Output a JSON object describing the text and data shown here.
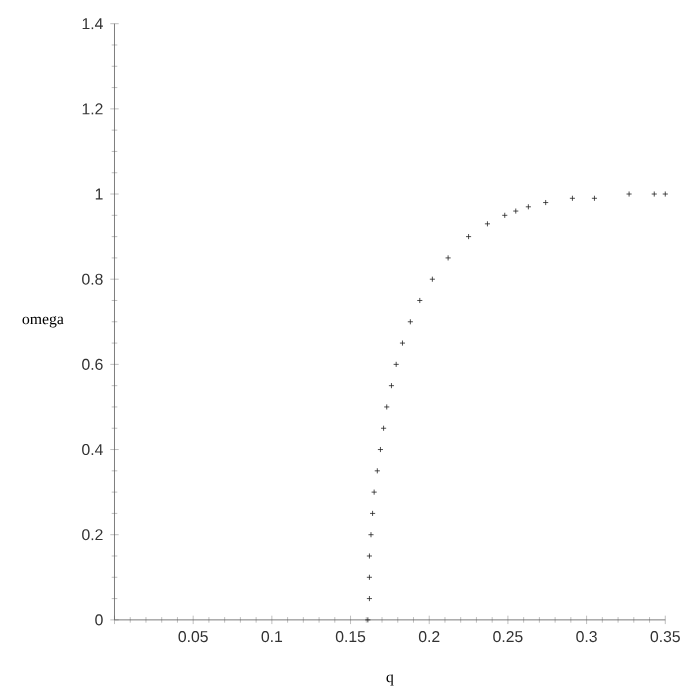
{
  "chart_data": {
    "type": "scatter",
    "xlabel": "q",
    "ylabel": "omega",
    "x": [
      0.161,
      0.162,
      0.162,
      0.162,
      0.163,
      0.164,
      0.165,
      0.167,
      0.169,
      0.171,
      0.173,
      0.176,
      0.179,
      0.183,
      0.188,
      0.194,
      0.202,
      0.212,
      0.225,
      0.237,
      0.248,
      0.255,
      0.263,
      0.274,
      0.291,
      0.305,
      0.327,
      0.343,
      0.35
    ],
    "series": [
      {
        "color": "#202020",
        "values": [
          0.0,
          0.05,
          0.1,
          0.15,
          0.2,
          0.25,
          0.3,
          0.35,
          0.4,
          0.45,
          0.5,
          0.55,
          0.6,
          0.65,
          0.7,
          0.75,
          0.8,
          0.85,
          0.9,
          0.93,
          0.95,
          0.96,
          0.97,
          0.98,
          0.99,
          0.99,
          1.0,
          1.0,
          1.0
        ]
      }
    ],
    "marker": "cross",
    "xlim": [
      0,
      0.35
    ],
    "ylim": [
      0,
      1.4
    ],
    "xticks": [
      {
        "value": 0,
        "label": null
      },
      0.05,
      0.1,
      0.15,
      0.2,
      0.25,
      0.3,
      0.35
    ],
    "yticks": [
      0,
      0.2,
      0.4,
      0.6,
      0.8,
      1,
      1.2,
      1.4
    ]
  }
}
